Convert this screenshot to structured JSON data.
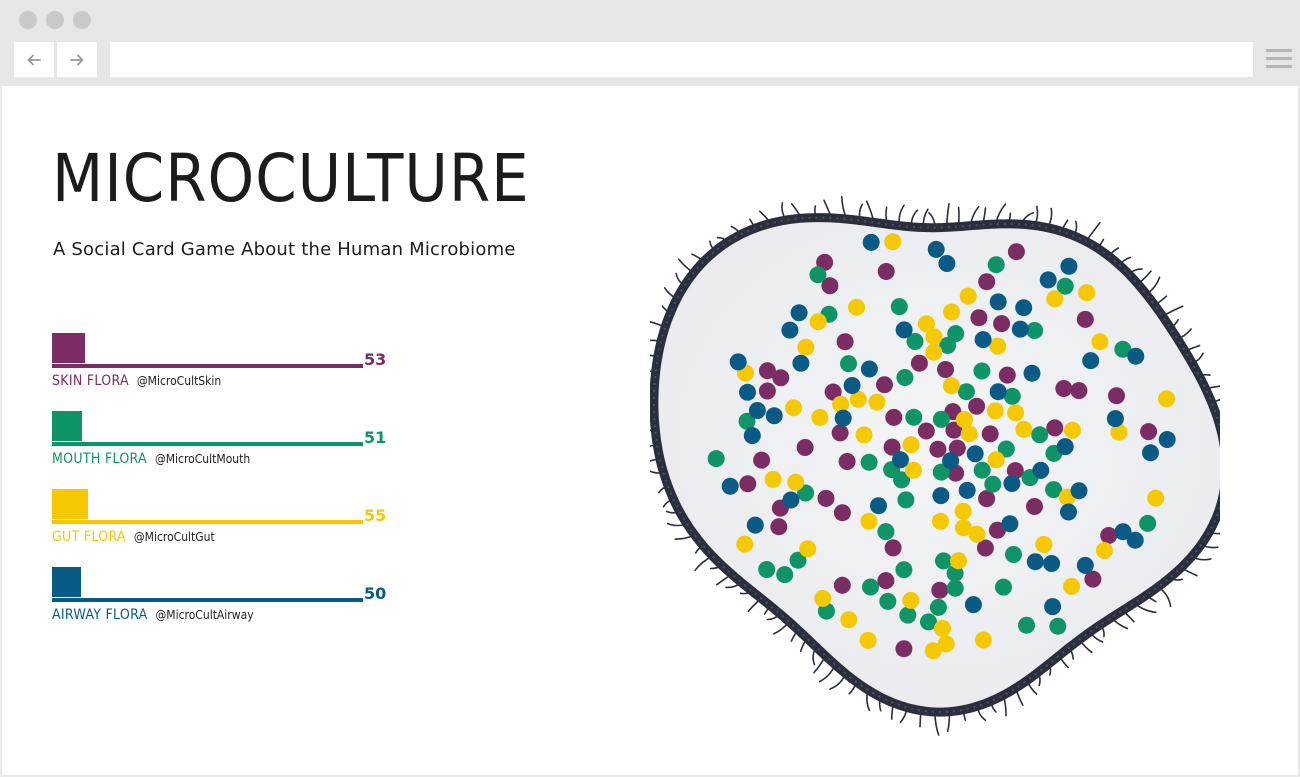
{
  "browser": {
    "back_icon": "arrow-left-icon",
    "forward_icon": "arrow-right-icon",
    "menu_icon": "hamburger-menu-icon",
    "url": ""
  },
  "header": {
    "title": "MICROCULTURE",
    "subtitle": "A Social Card Game About the Human Microbiome"
  },
  "teams": [
    {
      "name": "SKIN FLORA",
      "handle": "@MicroCultSkin",
      "score": "53",
      "color": "#7b2d63"
    },
    {
      "name": "MOUTH FLORA",
      "handle": "@MicroCultMouth",
      "score": "51",
      "color": "#0f9467"
    },
    {
      "name": "GUT FLORA",
      "handle": "@MicroCultGut",
      "score": "55",
      "color": "#f5c800"
    },
    {
      "name": "AIRWAY FLORA",
      "handle": "@MicroCultAirway",
      "score": "50",
      "color": "#0a5a86"
    }
  ],
  "cell": {
    "membrane_color": "#2b2f3d",
    "fill_color": "#e8eaee"
  }
}
